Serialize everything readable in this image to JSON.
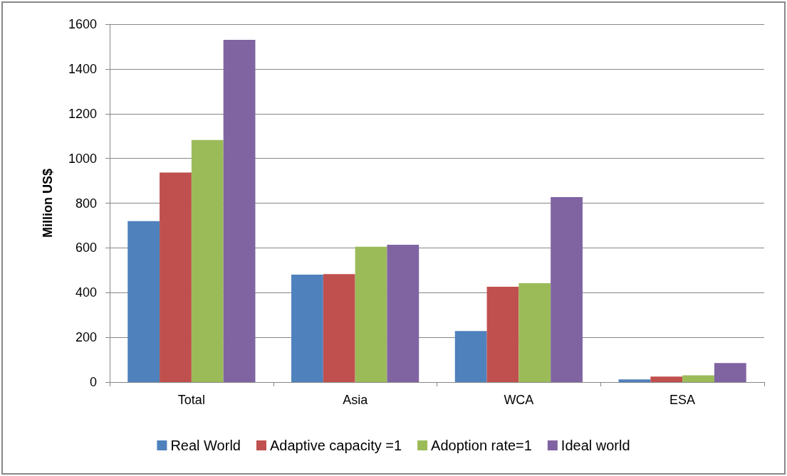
{
  "chart_data": {
    "type": "bar",
    "ylabel": "Million US$",
    "categories": [
      "Total",
      "Asia",
      "WCA",
      "ESA"
    ],
    "series": [
      {
        "name": "Real World",
        "color": "#4f81bd",
        "values": [
          720,
          480,
          228,
          12
        ]
      },
      {
        "name": "Adaptive capacity =1",
        "color": "#c0504d",
        "values": [
          937,
          483,
          426,
          25
        ]
      },
      {
        "name": "Adoption rate=1",
        "color": "#9bbb59",
        "values": [
          1082,
          605,
          442,
          30
        ]
      },
      {
        "name": "Ideal world",
        "color": "#8064a2",
        "values": [
          1530,
          614,
          827,
          85
        ]
      }
    ],
    "ylim": [
      0,
      1600
    ],
    "yticks": [
      0,
      200,
      400,
      600,
      800,
      1000,
      1200,
      1400,
      1600
    ],
    "grid": "y",
    "legend": "bottom"
  }
}
